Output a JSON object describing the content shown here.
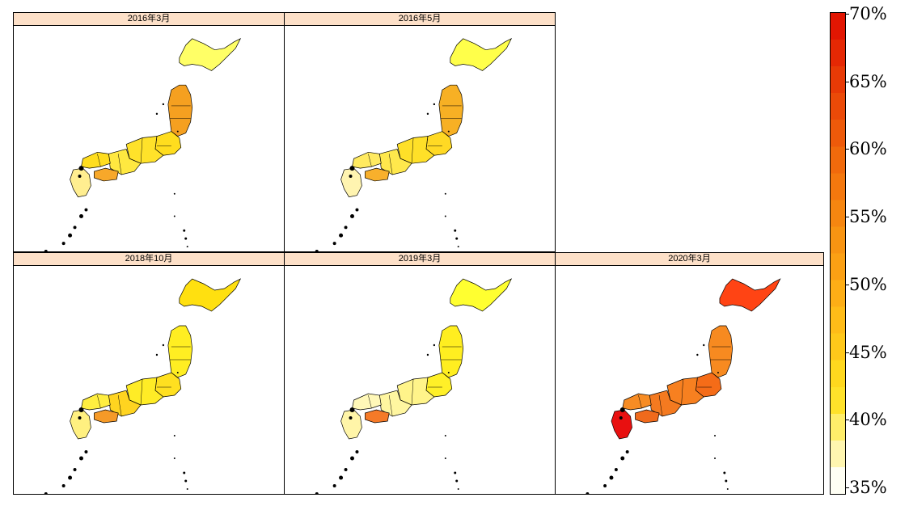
{
  "panels": [
    {
      "title": "2016年3月",
      "colors": {
        "hokkaido": "#ffff66",
        "tohoku": "#f5a020",
        "kanto": "#ffdd1e",
        "chubu": "#ffe22a",
        "kinki": "#ffe840",
        "chugoku": "#ffdd1e",
        "shikoku": "#f7a82a",
        "kyushu": "#ffee90"
      }
    },
    {
      "title": "2016年5月",
      "colors": {
        "hokkaido": "#ffff4a",
        "tohoku": "#f7b024",
        "kanto": "#ffd924",
        "chubu": "#ffe028",
        "kinki": "#ffe84c",
        "chugoku": "#ffea60",
        "shikoku": "#f8b02c",
        "kyushu": "#fff4b0"
      }
    },
    {
      "title": "2018年10月",
      "colors": {
        "hokkaido": "#ffe010",
        "tohoku": "#ffee22",
        "kanto": "#ffe020",
        "chubu": "#ffec26",
        "kinki": "#ffd420",
        "chugoku": "#ffee40",
        "shikoku": "#f59a28",
        "kyushu": "#fff080"
      }
    },
    {
      "title": "2019年3月",
      "colors": {
        "hokkaido": "#ffff30",
        "tohoku": "#ffee20",
        "kanto": "#fff028",
        "chubu": "#fff48a",
        "kinki": "#fff6a0",
        "chugoku": "#fff8b8",
        "shikoku": "#f57a28",
        "kyushu": "#fff5a8"
      }
    },
    {
      "title": "2020年3月",
      "colors": {
        "hokkaido": "#ff4414",
        "tohoku": "#f78a20",
        "kanto": "#f56c18",
        "chubu": "#f78020",
        "kinki": "#f47a20",
        "chugoku": "#f78c24",
        "shikoku": "#f06a1c",
        "kyushu": "#e81010"
      }
    }
  ],
  "legend": {
    "labels": [
      "70%",
      "65%",
      "60%",
      "55%",
      "50%",
      "45%",
      "40%",
      "35%"
    ],
    "min": 35,
    "max": 70,
    "steps": [
      "#fffff4",
      "#fff6b0",
      "#ffee6a",
      "#ffe22a",
      "#ffd81e",
      "#ffc81a",
      "#ffbc18",
      "#fdae16",
      "#fba014",
      "#f89412",
      "#f68610",
      "#f4780e",
      "#f16a0c",
      "#ee5a0a",
      "#eb4a08",
      "#e83a06",
      "#e52804",
      "#e21602"
    ]
  }
}
